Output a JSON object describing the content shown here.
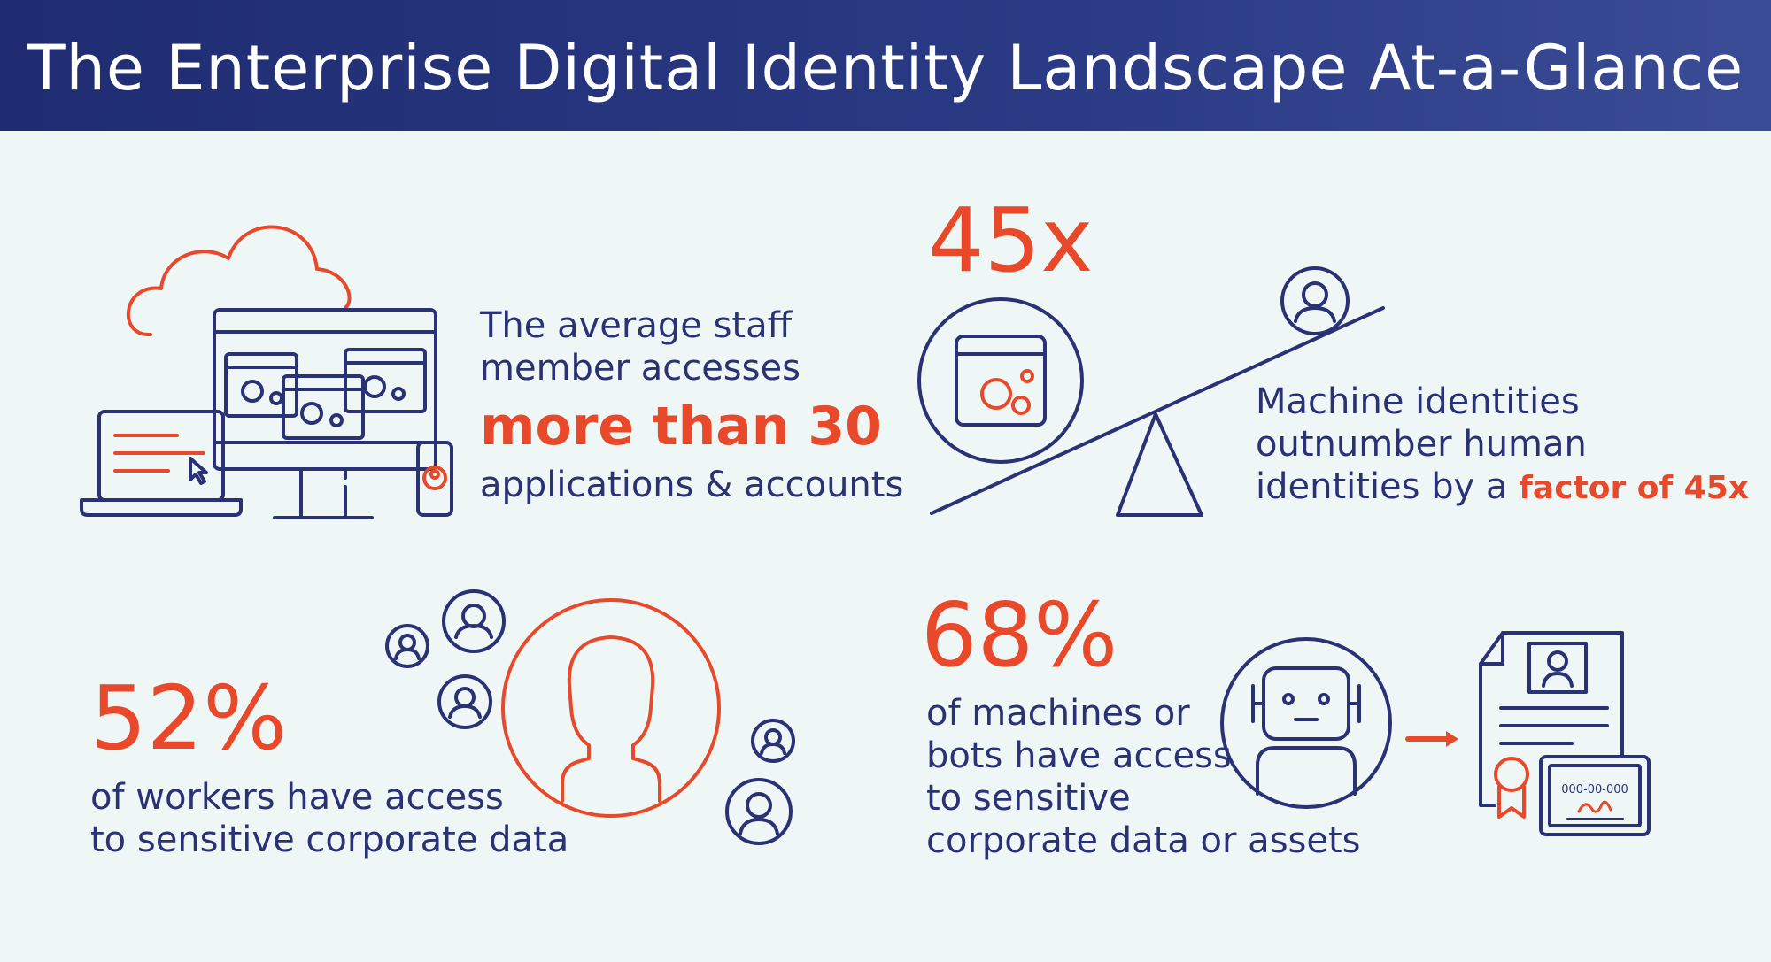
{
  "title": "The Enterprise Digital Identity Landscape At-a-Glance",
  "colors": {
    "navy": "#2a3174",
    "orange": "#e8492a",
    "background": "#eff7f6",
    "header": "#2a3a84"
  },
  "panel_apps": {
    "line1": "The average staff",
    "line2": "member accesses",
    "highlight": "more than 30",
    "line3": "applications & accounts",
    "icons": [
      "cloud-icon",
      "monitor-icon",
      "laptop-icon",
      "phone-icon",
      "gear-icon"
    ]
  },
  "panel_machines": {
    "stat": "45x",
    "line1": "Machine identities",
    "line2": "outnumber human",
    "line3_prefix": "identities by a ",
    "highlight": "factor of 45x",
    "icons": [
      "seesaw-icon",
      "app-window-icon",
      "user-icon"
    ]
  },
  "panel_workers": {
    "stat": "52%",
    "line1": "of workers have access",
    "line2": "to sensitive corporate data",
    "icons": [
      "user-silhouette-icon",
      "user-icon"
    ]
  },
  "panel_bots": {
    "stat": "68%",
    "line1": "of machines or",
    "line2": "bots have access",
    "line3": "to sensitive",
    "line4": "corporate data or assets",
    "certificate_number": "000-00-000",
    "icons": [
      "robot-icon",
      "arrow-right-icon",
      "certificate-icon",
      "id-card-icon"
    ]
  }
}
